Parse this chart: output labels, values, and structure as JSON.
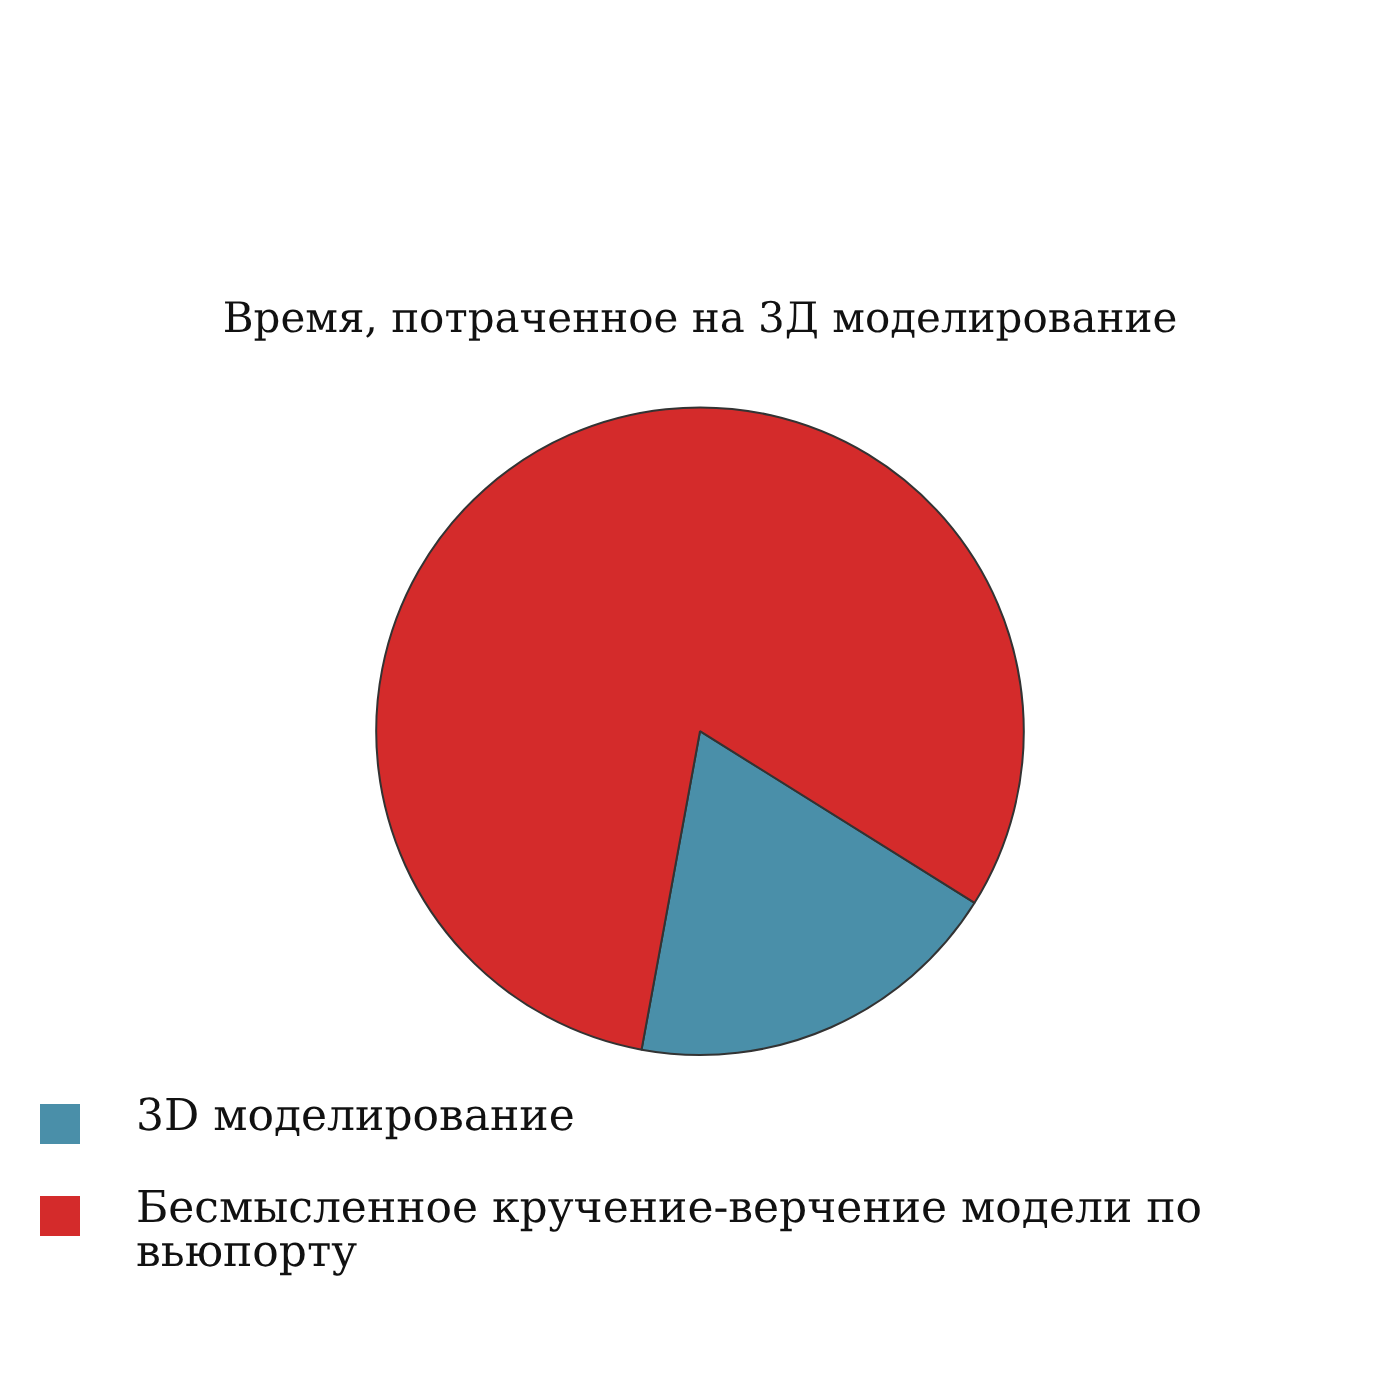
{
  "chart_data": {
    "type": "pie",
    "title": "Время, потраченное на 3Д моделирование",
    "categories": [
      "3D моделирование",
      "Бесмысленное кручение-верчение модели по вьюпорту"
    ],
    "values": [
      19,
      81
    ],
    "colors": [
      "#4a8fa9",
      "#d42b2b"
    ],
    "legend": "bottom left"
  }
}
